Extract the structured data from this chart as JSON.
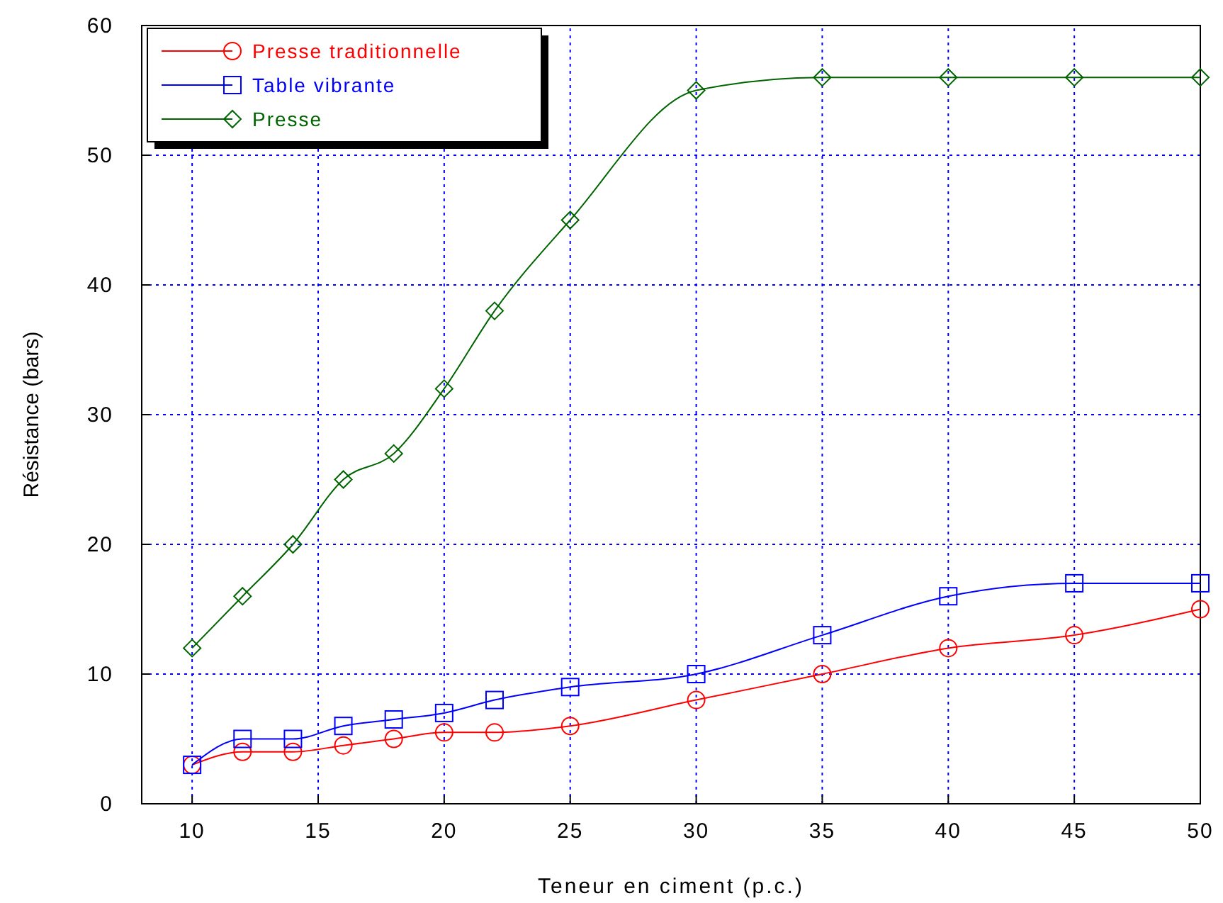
{
  "chart_data": {
    "type": "line",
    "xlabel": "Teneur en ciment (p.c.)",
    "ylabel": "Résistance (bars)",
    "xlim": [
      8,
      50
    ],
    "xticks": [
      10,
      15,
      20,
      25,
      30,
      35,
      40,
      45,
      50
    ],
    "ylim": [
      0,
      60
    ],
    "yticks": [
      0,
      10,
      20,
      30,
      40,
      50,
      60
    ],
    "grid": true,
    "legend": "top left",
    "series": [
      {
        "name": "Presse traditionnelle",
        "color": "#ff0000",
        "marker": "circle",
        "x": [
          10,
          12,
          14,
          16,
          18,
          20,
          22,
          25,
          30,
          35,
          40,
          45,
          50
        ],
        "values": [
          3,
          4,
          4,
          4.5,
          5,
          5.5,
          5.5,
          6,
          8,
          10,
          12,
          13,
          15
        ]
      },
      {
        "name": "Table vibrante",
        "color": "#0000ff",
        "marker": "square",
        "x": [
          10,
          12,
          14,
          16,
          18,
          20,
          22,
          25,
          30,
          35,
          40,
          45,
          50
        ],
        "values": [
          3,
          5,
          5,
          6,
          6.5,
          7,
          8,
          9,
          10,
          13,
          16,
          17,
          17
        ]
      },
      {
        "name": "Presse",
        "color": "#006400",
        "marker": "diamond",
        "x": [
          10,
          12,
          14,
          16,
          18,
          20,
          22,
          25,
          30,
          35,
          40,
          45,
          50
        ],
        "values": [
          12,
          16,
          20,
          25,
          27,
          32,
          38,
          45,
          55,
          56,
          56,
          56,
          56
        ]
      }
    ]
  }
}
